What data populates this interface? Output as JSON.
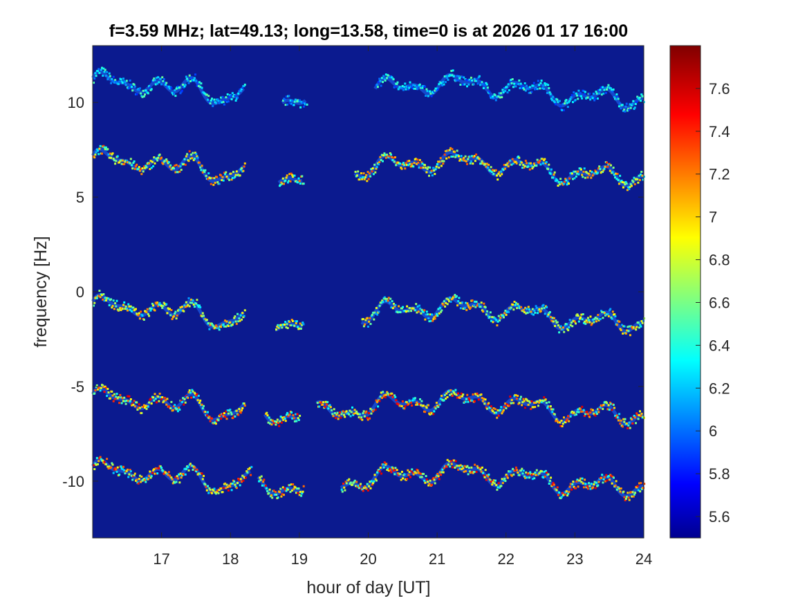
{
  "chart_data": {
    "type": "heatmap",
    "title": "f=3.59 MHz;  lat=49.13; long=13.58, time=0 is at 2026 01 17 16:00",
    "xlabel": "hour of day [UT]",
    "ylabel": "frequency [Hz]",
    "xlim": [
      16,
      24
    ],
    "ylim": [
      -13,
      13
    ],
    "xticks": [
      17,
      18,
      19,
      20,
      21,
      22,
      23,
      24
    ],
    "yticks": [
      10,
      5,
      0,
      -5,
      -10
    ],
    "colorbar": {
      "range": [
        5.5,
        7.8
      ],
      "ticks": [
        5.6,
        5.8,
        6,
        6.2,
        6.4,
        6.6,
        6.8,
        7,
        7.2,
        7.4,
        7.6
      ],
      "colormap": "jet"
    },
    "background_color": "#0b1a8f",
    "series": [
      {
        "base_freq": 10.6,
        "segments": [
          [
            16.0,
            18.2
          ],
          [
            18.75,
            19.1
          ],
          [
            20.1,
            24.0
          ]
        ],
        "peak": 6.6
      },
      {
        "base_freq": 6.5,
        "segments": [
          [
            16.0,
            18.2
          ],
          [
            18.7,
            19.05
          ],
          [
            19.8,
            24.0
          ]
        ],
        "peak": 7.4
      },
      {
        "base_freq": -1.2,
        "segments": [
          [
            16.0,
            18.2
          ],
          [
            18.65,
            19.05
          ],
          [
            19.9,
            24.0
          ]
        ],
        "peak": 7.3
      },
      {
        "base_freq": -6.1,
        "segments": [
          [
            16.0,
            18.2
          ],
          [
            18.5,
            19.0
          ],
          [
            19.25,
            24.0
          ]
        ],
        "peak": 7.6
      },
      {
        "base_freq": -9.9,
        "segments": [
          [
            16.0,
            18.3
          ],
          [
            18.4,
            19.05
          ],
          [
            19.6,
            24.0
          ]
        ],
        "peak": 7.6
      }
    ]
  }
}
